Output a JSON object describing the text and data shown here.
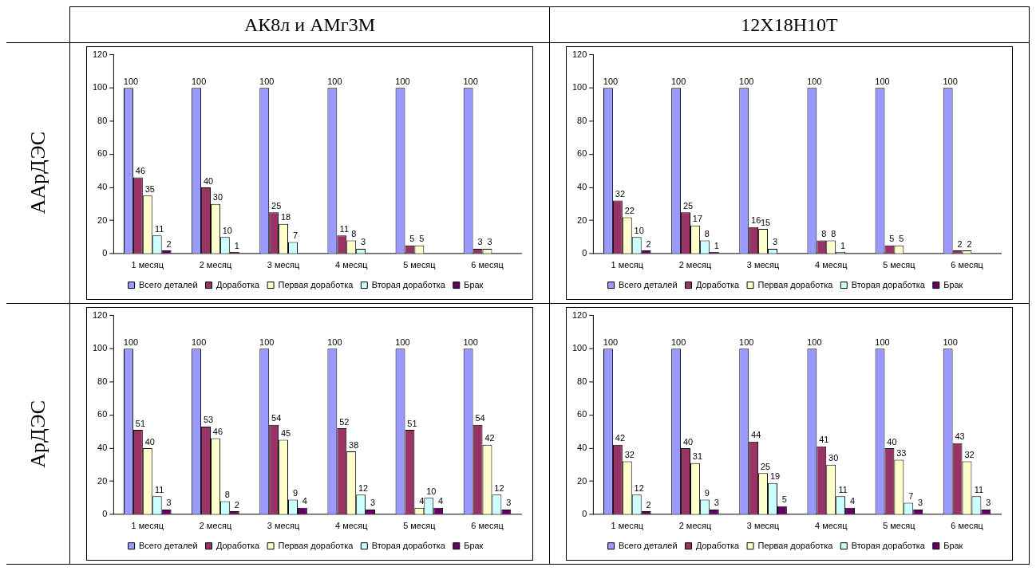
{
  "chart_data": [
    {
      "type": "bar",
      "title": "АК8л и АМг3М",
      "ylabel": "ААрДЭС",
      "categories": [
        "1 месяц",
        "2 месяц",
        "3 месяц",
        "4 месяц",
        "5 месяц",
        "6 месяц"
      ],
      "ylim": [
        0,
        120
      ],
      "yticks": [
        0,
        20,
        40,
        60,
        80,
        100,
        120
      ],
      "grid": false,
      "legend": "bottom",
      "data_labels": true,
      "series": [
        {
          "name": "Всего деталей",
          "color": "#9999ff",
          "values": [
            100,
            100,
            100,
            100,
            100,
            100
          ]
        },
        {
          "name": "Доработка",
          "color": "#993366",
          "values": [
            46,
            40,
            25,
            11,
            5,
            3
          ]
        },
        {
          "name": "Первая доработка",
          "color": "#ffffcc",
          "values": [
            35,
            30,
            18,
            8,
            5,
            3
          ]
        },
        {
          "name": "Вторая доработка",
          "color": "#ccffff",
          "values": [
            11,
            10,
            7,
            3,
            null,
            null
          ]
        },
        {
          "name": "Брак",
          "color": "#660066",
          "values": [
            2,
            1,
            null,
            null,
            null,
            null
          ]
        }
      ]
    },
    {
      "type": "bar",
      "title": "12Х18Н10Т",
      "categories": [
        "1 месяц",
        "2 месяц",
        "3 месяц",
        "4 месяц",
        "5 месяц",
        "6 месяц"
      ],
      "ylim": [
        0,
        120
      ],
      "yticks": [
        0,
        20,
        40,
        60,
        80,
        100,
        120
      ],
      "grid": false,
      "legend": "bottom",
      "data_labels": true,
      "series": [
        {
          "name": "Всего деталей",
          "color": "#9999ff",
          "values": [
            100,
            100,
            100,
            100,
            100,
            100
          ]
        },
        {
          "name": "Доработка",
          "color": "#993366",
          "values": [
            32,
            25,
            16,
            8,
            5,
            2
          ]
        },
        {
          "name": "Первая доработка",
          "color": "#ffffcc",
          "values": [
            22,
            17,
            15,
            8,
            5,
            2
          ]
        },
        {
          "name": "Вторая доработка",
          "color": "#ccffff",
          "values": [
            10,
            8,
            3,
            1,
            null,
            null
          ]
        },
        {
          "name": "Брак",
          "color": "#660066",
          "values": [
            2,
            1,
            null,
            null,
            null,
            null
          ]
        }
      ]
    },
    {
      "type": "bar",
      "ylabel": "АрДЭС",
      "categories": [
        "1 месяц",
        "2 месяц",
        "3 месяц",
        "4 месяц",
        "5 месяц",
        "6 месяц"
      ],
      "ylim": [
        0,
        120
      ],
      "yticks": [
        0,
        20,
        40,
        60,
        80,
        100,
        120
      ],
      "grid": false,
      "legend": "bottom",
      "data_labels": true,
      "series": [
        {
          "name": "Всего деталей",
          "color": "#9999ff",
          "values": [
            100,
            100,
            100,
            100,
            100,
            100
          ]
        },
        {
          "name": "Доработка",
          "color": "#993366",
          "values": [
            51,
            53,
            54,
            52,
            51,
            54
          ]
        },
        {
          "name": "Первая доработка",
          "color": "#ffffcc",
          "values": [
            40,
            46,
            45,
            38,
            4,
            42
          ]
        },
        {
          "name": "Вторая доработка",
          "color": "#ccffff",
          "values": [
            11,
            8,
            9,
            12,
            10,
            12
          ]
        },
        {
          "name": "Брак",
          "color": "#660066",
          "values": [
            3,
            2,
            4,
            3,
            4,
            3
          ]
        }
      ]
    },
    {
      "type": "bar",
      "categories": [
        "1 месяц",
        "2 месяц",
        "3 месяц",
        "4 месяц",
        "5 месяц",
        "6 месяц"
      ],
      "ylim": [
        0,
        120
      ],
      "yticks": [
        0,
        20,
        40,
        60,
        80,
        100,
        120
      ],
      "grid": false,
      "legend": "bottom",
      "data_labels": true,
      "series": [
        {
          "name": "Всего деталей",
          "color": "#9999ff",
          "values": [
            100,
            100,
            100,
            100,
            100,
            100
          ]
        },
        {
          "name": "Доработка",
          "color": "#993366",
          "values": [
            42,
            40,
            44,
            41,
            40,
            43
          ]
        },
        {
          "name": "Первая доработка",
          "color": "#ffffcc",
          "values": [
            32,
            31,
            25,
            30,
            33,
            32
          ]
        },
        {
          "name": "Вторая доработка",
          "color": "#ccffff",
          "values": [
            12,
            9,
            19,
            11,
            7,
            11
          ]
        },
        {
          "name": "Брак",
          "color": "#660066",
          "values": [
            2,
            3,
            5,
            4,
            3,
            3
          ]
        }
      ]
    }
  ]
}
